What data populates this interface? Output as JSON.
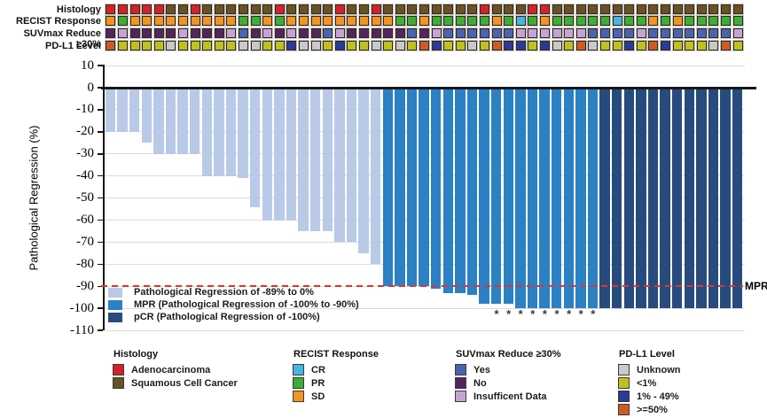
{
  "tracks": {
    "rows": [
      {
        "key": "histology",
        "label": "Histology"
      },
      {
        "key": "recist",
        "label": "RECIST Response"
      },
      {
        "key": "suvmax",
        "label": "SUVmax Reduce ≥30%"
      },
      {
        "key": "pdl1",
        "label": "PD-L1 Level"
      }
    ],
    "histology": [
      "A",
      "A",
      "A",
      "A",
      "A",
      "S",
      "S",
      "A",
      "S",
      "S",
      "S",
      "S",
      "S",
      "S",
      "A",
      "S",
      "S",
      "S",
      "S",
      "A",
      "S",
      "S",
      "A",
      "S",
      "S",
      "S",
      "S",
      "S",
      "S",
      "S",
      "S",
      "A",
      "S",
      "S",
      "S",
      "A",
      "A",
      "S",
      "S",
      "S",
      "S",
      "S",
      "S",
      "S",
      "S",
      "S",
      "S",
      "S",
      "S",
      "S",
      "S",
      "S",
      "S"
    ],
    "recist": [
      "O",
      "G",
      "O",
      "O",
      "O",
      "O",
      "O",
      "O",
      "O",
      "O",
      "O",
      "G",
      "G",
      "O",
      "G",
      "O",
      "O",
      "O",
      "O",
      "O",
      "O",
      "O",
      "O",
      "O",
      "G",
      "G",
      "O",
      "G",
      "G",
      "G",
      "G",
      "G",
      "O",
      "G",
      "C",
      "G",
      "O",
      "G",
      "G",
      "G",
      "G",
      "G",
      "C",
      "G",
      "G",
      "O",
      "G",
      "O",
      "G",
      "G",
      "G",
      "G",
      "G"
    ],
    "suvmax": [
      "P",
      "L",
      "P",
      "P",
      "P",
      "P",
      "L",
      "P",
      "P",
      "P",
      "L",
      "B",
      "P",
      "L",
      "P",
      "L",
      "P",
      "P",
      "B",
      "L",
      "P",
      "P",
      "P",
      "P",
      "P",
      "B",
      "P",
      "L",
      "B",
      "B",
      "B",
      "B",
      "B",
      "B",
      "L",
      "L",
      "L",
      "L",
      "L",
      "L",
      "B",
      "B",
      "B",
      "B",
      "L",
      "B",
      "B",
      "B",
      "B",
      "B",
      "B",
      "B",
      "L"
    ],
    "pdl1": [
      "R",
      "Y",
      "Y",
      "Y",
      "Y",
      "U",
      "Y",
      "Y",
      "Y",
      "Y",
      "Y",
      "U",
      "U",
      "Y",
      "Y",
      "N",
      "U",
      "U",
      "Y",
      "N",
      "Y",
      "Y",
      "U",
      "Y",
      "U",
      "Y",
      "R",
      "N",
      "Y",
      "Y",
      "U",
      "Y",
      "R",
      "N",
      "N",
      "Y",
      "N",
      "U",
      "Y",
      "R",
      "U",
      "Y",
      "Y",
      "N",
      "Y",
      "R",
      "N",
      "Y",
      "Y",
      "Y",
      "U",
      "R",
      "Y"
    ],
    "colors": {
      "histology": {
        "A": "#d62128",
        "S": "#6b5222"
      },
      "recist": {
        "C": "#45b5e6",
        "G": "#3bae36",
        "O": "#f39421"
      },
      "suvmax": {
        "B": "#4a64b2",
        "P": "#53255f",
        "L": "#c5a3d6"
      },
      "pdl1": {
        "U": "#c9c9c9",
        "Y": "#bfc120",
        "N": "#2a3a99",
        "R": "#ce5a26"
      }
    }
  },
  "chart_data": {
    "type": "bar",
    "title": "",
    "xlabel": "",
    "ylabel": "Pathological Regression (%)",
    "ylim": [
      -110,
      10
    ],
    "yticks": [
      10,
      0,
      -10,
      -20,
      -30,
      -40,
      -50,
      -60,
      -70,
      -80,
      -90,
      -100,
      -110
    ],
    "grid": "horizontal",
    "n_patients": 53,
    "values": [
      -20,
      -20,
      -20,
      -25,
      -30,
      -30,
      -30,
      -30,
      -40,
      -40,
      -40,
      -41,
      -54,
      -60,
      -60,
      -60,
      -65,
      -65,
      -65,
      -70,
      -70,
      -75,
      -80,
      -90,
      -90,
      -90,
      -90,
      -91,
      -93,
      -93,
      -94,
      -98,
      -98,
      -98,
      -100,
      -100,
      -100,
      -100,
      -100,
      -100,
      -100,
      -100,
      -100,
      -100,
      -100,
      -100,
      -100,
      -100,
      -100,
      -100,
      -100,
      -100,
      -100
    ],
    "groups": [
      "pr",
      "pr",
      "pr",
      "pr",
      "pr",
      "pr",
      "pr",
      "pr",
      "pr",
      "pr",
      "pr",
      "pr",
      "pr",
      "pr",
      "pr",
      "pr",
      "pr",
      "pr",
      "pr",
      "pr",
      "pr",
      "pr",
      "pr",
      "mpr",
      "mpr",
      "mpr",
      "mpr",
      "mpr",
      "mpr",
      "mpr",
      "mpr",
      "mpr",
      "mpr",
      "mpr",
      "mpr",
      "mpr",
      "mpr",
      "mpr",
      "mpr",
      "mpr",
      "mpr",
      "pcr",
      "pcr",
      "pcr",
      "pcr",
      "pcr",
      "pcr",
      "pcr",
      "pcr",
      "pcr",
      "pcr",
      "pcr",
      "pcr"
    ],
    "bar_colors": {
      "pr": "#b9c9e8",
      "mpr": "#2c80c4",
      "pcr": "#284b7e"
    },
    "asterisk_indices": [
      32,
      33,
      34,
      35,
      36,
      37,
      38,
      39,
      40
    ],
    "asterisk_symbol": "*",
    "threshold_line": {
      "y": -90,
      "label": "MPR",
      "color": "#e63229",
      "style": "dashed"
    },
    "legend_position": "inside bottom-left",
    "legend": [
      {
        "key": "pr",
        "label": "Pathological Regression of -89% to 0%"
      },
      {
        "key": "mpr",
        "label": "MPR (Pathological Regression of -100% to -90%)"
      },
      {
        "key": "pcr",
        "label": "pCR (Pathological Regression of -100%)"
      }
    ]
  },
  "bottom_legend": [
    {
      "title": "Histology",
      "items": [
        {
          "label": "Adenocarcinoma",
          "color": "#d62128"
        },
        {
          "label": "Squamous Cell Cancer",
          "color": "#6b5222"
        }
      ]
    },
    {
      "title": "RECIST Response",
      "items": [
        {
          "label": "CR",
          "color": "#45b5e6"
        },
        {
          "label": "PR",
          "color": "#3bae36"
        },
        {
          "label": "SD",
          "color": "#f39421"
        }
      ]
    },
    {
      "title": "SUVmax Reduce ≥30%",
      "items": [
        {
          "label": "Yes",
          "color": "#4a64b2"
        },
        {
          "label": "No",
          "color": "#53255f"
        },
        {
          "label": "Insufficent Data",
          "color": "#c5a3d6"
        }
      ]
    },
    {
      "title": "PD-L1 Level",
      "items": [
        {
          "label": "Unknown",
          "color": "#c9c9c9"
        },
        {
          "label": "<1%",
          "color": "#bfc120"
        },
        {
          "label": "1% - 49%",
          "color": "#2a3a99"
        },
        {
          "label": ">=50%",
          "color": "#ce5a26"
        }
      ]
    }
  ]
}
